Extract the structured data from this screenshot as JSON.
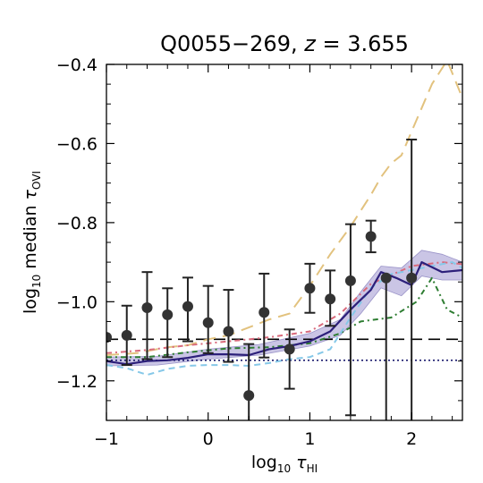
{
  "chart_data": {
    "type": "line",
    "title": {
      "prefix": "Q0055−269, ",
      "var": "z",
      "suffix": " = 3.655"
    },
    "xlabel": {
      "pre": "log",
      "pre_sub": "10",
      "sym": " τ",
      "sym_sub": "HI"
    },
    "ylabel": {
      "pre": "log",
      "pre_sub": "10",
      "mid": " median ",
      "sym": "τ",
      "sym_sub": "OVI"
    },
    "xlim": [
      -1.0,
      2.5
    ],
    "ylim": [
      -1.3,
      -0.4
    ],
    "x_ticks": [
      {
        "value": -1,
        "label": "−1"
      },
      {
        "value": 0,
        "label": "0"
      },
      {
        "value": 1,
        "label": "1"
      },
      {
        "value": 2,
        "label": "2"
      }
    ],
    "y_ticks": [
      {
        "value": -1.2,
        "label": "−1.2"
      },
      {
        "value": -1.0,
        "label": "−1.0"
      },
      {
        "value": -0.8,
        "label": "−0.8"
      },
      {
        "value": -0.6,
        "label": "−0.6"
      },
      {
        "value": -0.4,
        "label": "−0.4"
      }
    ],
    "grid": false,
    "observed_points": [
      {
        "x": -1.0,
        "y": -1.09,
        "err_lo": 0.0,
        "err_hi": 0.0
      },
      {
        "x": -0.8,
        "y": -1.085,
        "err_lo": 0.075,
        "err_hi": 0.075
      },
      {
        "x": -0.6,
        "y": -1.015,
        "err_lo": 0.13,
        "err_hi": 0.09
      },
      {
        "x": -0.4,
        "y": -1.033,
        "err_lo": 0.107,
        "err_hi": 0.067
      },
      {
        "x": -0.2,
        "y": -1.012,
        "err_lo": 0.088,
        "err_hi": 0.073
      },
      {
        "x": 0.0,
        "y": -1.053,
        "err_lo": 0.077,
        "err_hi": 0.093
      },
      {
        "x": 0.2,
        "y": -1.075,
        "err_lo": 0.077,
        "err_hi": 0.105
      },
      {
        "x": 0.4,
        "y": -1.237,
        "err_lo": 0.12,
        "err_hi": 0.13
      },
      {
        "x": 0.55,
        "y": -1.027,
        "err_lo": 0.114,
        "err_hi": 0.098
      },
      {
        "x": 0.8,
        "y": -1.12,
        "err_lo": 0.1,
        "err_hi": 0.05
      },
      {
        "x": 1.0,
        "y": -0.966,
        "err_lo": 0.062,
        "err_hi": 0.062
      },
      {
        "x": 1.2,
        "y": -0.993,
        "err_lo": 0.068,
        "err_hi": 0.072
      },
      {
        "x": 1.4,
        "y": -0.947,
        "err_lo": 0.34,
        "err_hi": 0.143
      },
      {
        "x": 1.6,
        "y": -0.835,
        "err_lo": 0.04,
        "err_hi": 0.04
      },
      {
        "x": 1.75,
        "y": -0.94,
        "err_lo": 0.43,
        "err_hi": 0.0
      },
      {
        "x": 2.0,
        "y": -0.94,
        "err_lo": 0.38,
        "err_hi": 0.35
      }
    ],
    "reference_lines": [
      {
        "style": "dashed",
        "color": "#000000",
        "y": -1.095
      },
      {
        "style": "dotted",
        "color": "#1a1a6e",
        "y": -1.148
      }
    ],
    "series": [
      {
        "style": "solid",
        "color": "#2c1f7a",
        "x": [
          -1.0,
          -0.8,
          -0.6,
          -0.4,
          -0.2,
          0.0,
          0.2,
          0.4,
          0.6,
          0.8,
          1.0,
          1.2,
          1.4,
          1.6,
          1.7,
          1.85,
          2.0,
          2.1,
          2.3,
          2.5
        ],
        "y": [
          -1.15,
          -1.158,
          -1.15,
          -1.148,
          -1.142,
          -1.133,
          -1.133,
          -1.135,
          -1.12,
          -1.112,
          -1.1,
          -1.075,
          -1.02,
          -0.97,
          -0.925,
          -0.94,
          -0.958,
          -0.9,
          -0.925,
          -0.92
        ]
      },
      {
        "style": "band",
        "color": "#b8b2dc",
        "x": [
          -1.0,
          -0.5,
          0.0,
          0.5,
          1.0,
          1.3,
          1.5,
          1.7,
          1.9,
          2.1,
          2.3,
          2.5
        ],
        "upper": [
          -1.14,
          -1.138,
          -1.12,
          -1.108,
          -1.08,
          -1.045,
          -0.975,
          -0.91,
          -0.915,
          -0.87,
          -0.88,
          -0.9
        ],
        "lower": [
          -1.162,
          -1.16,
          -1.145,
          -1.135,
          -1.112,
          -1.085,
          -1.03,
          -0.965,
          -0.985,
          -0.935,
          -0.945,
          -0.945
        ]
      },
      {
        "style": "long-dash",
        "color": "#e2c27e",
        "x": [
          -1.0,
          -0.7,
          -0.4,
          -0.2,
          0.0,
          0.2,
          0.4,
          0.6,
          0.8,
          1.0,
          1.2,
          1.4,
          1.6,
          1.7,
          1.8,
          1.9,
          2.0,
          2.2,
          2.35,
          2.5
        ],
        "y": [
          -1.135,
          -1.13,
          -1.115,
          -1.11,
          -1.095,
          -1.085,
          -1.065,
          -1.045,
          -1.03,
          -0.96,
          -0.88,
          -0.81,
          -0.73,
          -0.685,
          -0.65,
          -0.63,
          -0.57,
          -0.45,
          -0.39,
          -0.485
        ]
      },
      {
        "style": "dash-dot",
        "color": "#d96a7c",
        "x": [
          -1.0,
          -0.6,
          -0.2,
          0.2,
          0.6,
          1.0,
          1.3,
          1.6,
          2.0,
          2.3,
          2.5
        ],
        "y": [
          -1.13,
          -1.122,
          -1.11,
          -1.1,
          -1.09,
          -1.075,
          -1.03,
          -0.955,
          -0.91,
          -0.9,
          -0.905
        ]
      },
      {
        "style": "dash-dot",
        "color": "#2e7d32",
        "x": [
          -1.0,
          -0.6,
          -0.2,
          0.2,
          0.6,
          1.0,
          1.3,
          1.5,
          1.8,
          2.05,
          2.2,
          2.35,
          2.5
        ],
        "y": [
          -1.14,
          -1.14,
          -1.128,
          -1.118,
          -1.115,
          -1.105,
          -1.08,
          -1.05,
          -1.04,
          -1.0,
          -0.94,
          -1.02,
          -1.04
        ]
      },
      {
        "style": "dashed",
        "color": "#86c8e8",
        "x": [
          -1.0,
          -0.8,
          -0.6,
          -0.4,
          -0.2,
          0.0,
          0.2,
          0.4,
          0.6,
          0.8,
          1.0,
          1.2,
          1.4,
          1.6,
          1.8,
          2.0,
          2.2,
          2.4,
          2.5
        ],
        "y": [
          -1.16,
          -1.168,
          -1.185,
          -1.17,
          -1.162,
          -1.16,
          -1.16,
          -1.162,
          -1.155,
          -1.145,
          -1.14,
          -1.12,
          -1.04,
          -0.965,
          -0.93,
          -0.92,
          -0.91,
          -0.9,
          -0.915
        ]
      }
    ]
  }
}
